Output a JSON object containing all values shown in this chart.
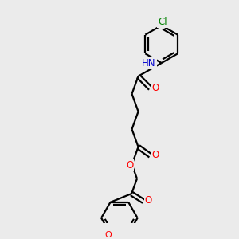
{
  "bg_color": "#ebebeb",
  "bond_color": "#000000",
  "bond_width": 1.6,
  "atom_colors": {
    "O": "#ff0000",
    "N": "#0000cd",
    "Cl": "#008000",
    "C": "#000000"
  },
  "font_size": 8.5,
  "figsize": [
    3.0,
    3.0
  ],
  "dpi": 100,
  "xlim": [
    0,
    10
  ],
  "ylim": [
    0,
    10
  ]
}
